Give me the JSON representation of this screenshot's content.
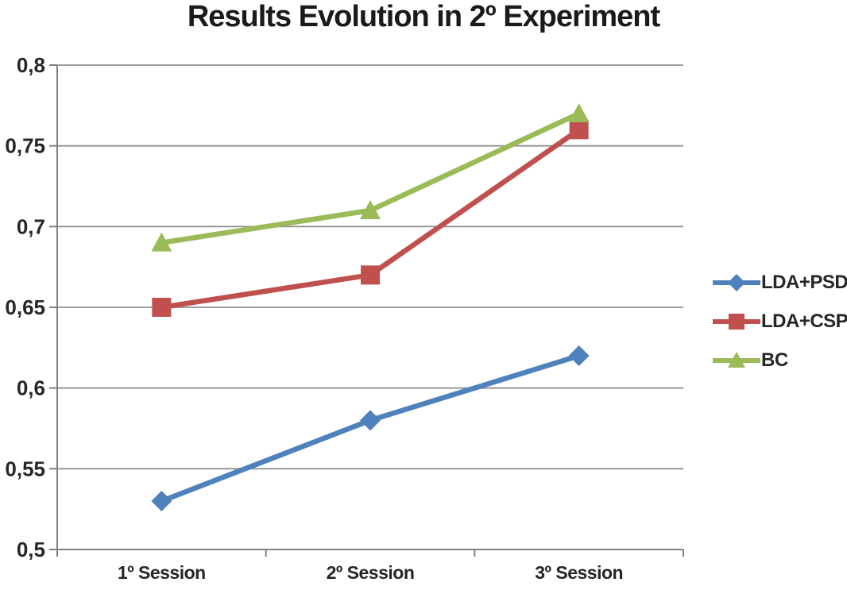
{
  "chart_data": {
    "type": "line",
    "title": "Results Evolution in 2º Experiment",
    "categories": [
      "1º Session",
      "2º Session",
      "3º Session"
    ],
    "series": [
      {
        "name": "LDA+PSD",
        "color": "#4F81BD",
        "marker": "diamond",
        "values": [
          0.53,
          0.58,
          0.62
        ]
      },
      {
        "name": "LDA+CSP",
        "color": "#C0504D",
        "marker": "square",
        "values": [
          0.65,
          0.67,
          0.76
        ]
      },
      {
        "name": "BC",
        "color": "#9BBB59",
        "marker": "triangle",
        "values": [
          0.69,
          0.71,
          0.77
        ]
      }
    ],
    "ylim": [
      0.5,
      0.8
    ],
    "ytick_step": 0.05,
    "ytick_labels": [
      "0,5",
      "0,55",
      "0,6",
      "0,65",
      "0,7",
      "0,75",
      "0,8"
    ],
    "decimal_separator": ",",
    "grid": true,
    "legend_position": "right",
    "colors": {
      "grid_line": "#909090",
      "axis_line": "#808080",
      "tick_label": "#262626",
      "title": "#1a1a1a",
      "background": "#ffffff"
    }
  }
}
